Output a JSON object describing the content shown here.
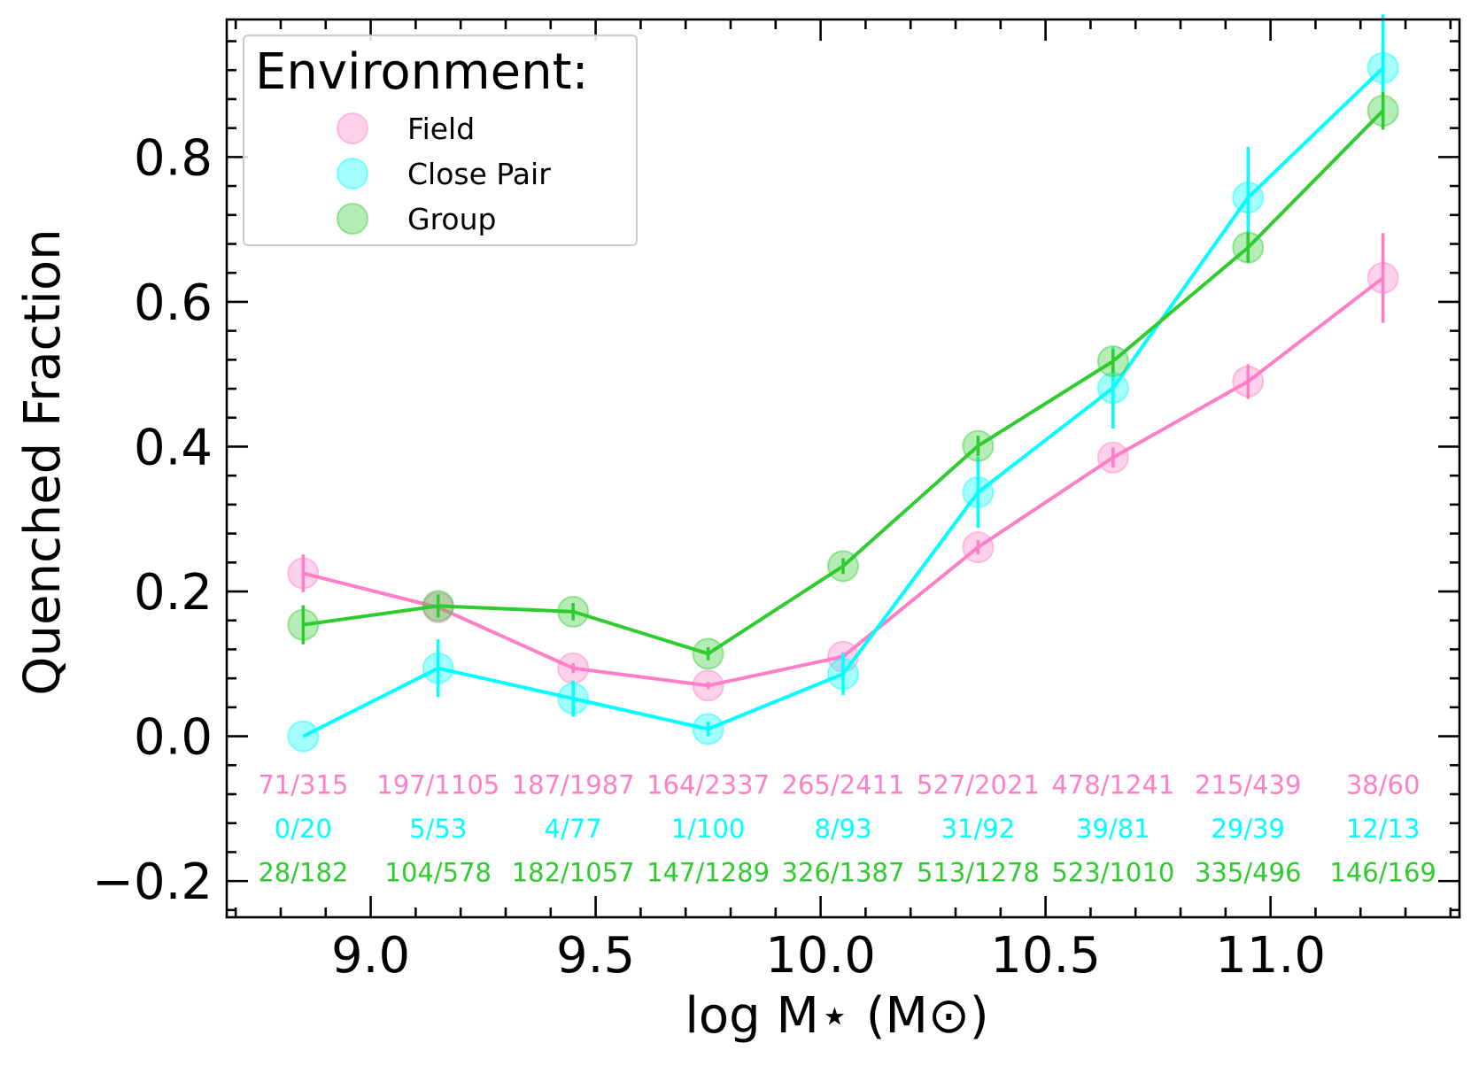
{
  "chart_data": {
    "type": "line",
    "xlabel": "log M⋆ (M⊙)",
    "ylabel": "Quenched Fraction",
    "xlim": [
      8.68,
      11.42
    ],
    "ylim": [
      -0.25,
      0.99
    ],
    "x_ticks": [
      9.0,
      9.5,
      10.0,
      10.5,
      11.0
    ],
    "x_tick_labels": [
      "9.0",
      "9.5",
      "10.0",
      "10.5",
      "11.0"
    ],
    "y_ticks": [
      -0.2,
      0.0,
      0.2,
      0.4,
      0.6,
      0.8
    ],
    "y_tick_labels": [
      "−0.2",
      "0.0",
      "0.2",
      "0.4",
      "0.6",
      "0.8"
    ],
    "x_minor_step": 0.1,
    "y_minor_step": 0.04,
    "grid": false,
    "legend": {
      "title": "Environment:",
      "placement": "top-left"
    },
    "x": [
      8.85,
      9.15,
      9.45,
      9.75,
      10.05,
      10.35,
      10.65,
      10.95,
      11.25
    ],
    "series": [
      {
        "name": "Field",
        "color": "#ff7fc6",
        "values": [
          0.225,
          0.178,
          0.094,
          0.07,
          0.11,
          0.261,
          0.385,
          0.49,
          0.633
        ],
        "errors": [
          0.026,
          0.012,
          0.007,
          0.005,
          0.006,
          0.01,
          0.014,
          0.024,
          0.062
        ],
        "counts": [
          "71/315",
          "197/1105",
          "187/1987",
          "164/2337",
          "265/2411",
          "527/2021",
          "478/1241",
          "215/439",
          "38/60"
        ],
        "count_y": -0.067
      },
      {
        "name": "Close Pair",
        "color": "#00ffff",
        "values": [
          0.0,
          0.094,
          0.052,
          0.01,
          0.086,
          0.337,
          0.481,
          0.744,
          0.923
        ],
        "errors": [
          0.0,
          0.04,
          0.025,
          0.01,
          0.029,
          0.049,
          0.056,
          0.07,
          0.074
        ],
        "counts": [
          "0/20",
          "5/53",
          "4/77",
          "1/100",
          "8/93",
          "31/92",
          "39/81",
          "29/39",
          "12/13"
        ],
        "count_y": -0.128
      },
      {
        "name": "Group",
        "color": "#2ecc2e",
        "values": [
          0.154,
          0.18,
          0.172,
          0.114,
          0.235,
          0.401,
          0.518,
          0.675,
          0.864
        ],
        "errors": [
          0.027,
          0.016,
          0.012,
          0.009,
          0.011,
          0.014,
          0.016,
          0.021,
          0.026
        ],
        "counts": [
          "28/182",
          "104/578",
          "182/1057",
          "147/1289",
          "326/1387",
          "513/1278",
          "523/1010",
          "335/496",
          "146/169"
        ],
        "count_y": -0.188
      }
    ]
  }
}
